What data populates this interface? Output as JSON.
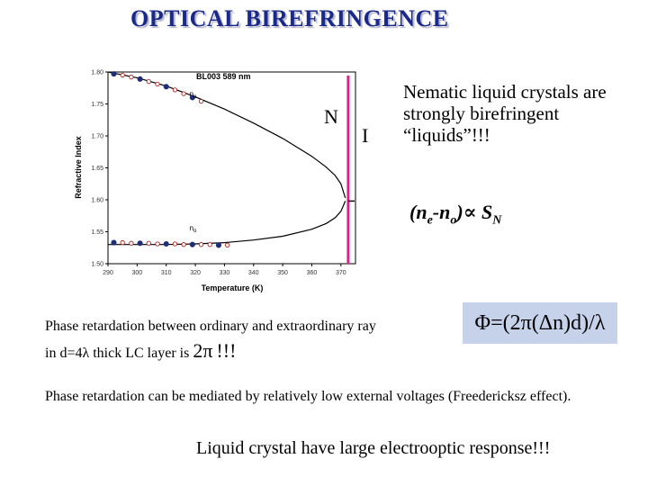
{
  "slide": {
    "title": "OPTICAL BIREFRINGENCE",
    "label_n": "N",
    "label_i": "I",
    "nematic_text": "Nematic liquid crystals are strongly birefringent “liquids”!!!",
    "formula": {
      "n_e": "n",
      "e_sub": "e",
      "minus": "-n",
      "o_sub": "o",
      "prop": "∝ S",
      "n_sub": "N"
    },
    "phase_line1": "Phase retardation between ordinary and extraordinary ray",
    "phase_line2_pre": "in d=4λ thick LC layer is",
    "phase_line2_big": "2π",
    "phase_line2_post": "!!!",
    "phi_formula": "Φ=(2π(Δn)d)/λ",
    "freedericksz": "Phase retardation can be mediated by relatively low external voltages (Freedericksz effect).",
    "response": "Liquid crystal have large electrooptic response!!!"
  },
  "colors": {
    "title": "#1a2a8a",
    "phi_box": "#c6d2ea",
    "transition_line": "#e0208c",
    "marker": "#1f2d7a"
  },
  "chart_data": {
    "type": "scatter",
    "title": "BL003 589 nm",
    "xlabel": "Temperature (K)",
    "ylabel": "Refractive Index",
    "xlim": [
      290,
      375
    ],
    "ylim": [
      1.5,
      1.8
    ],
    "xticks": [
      290,
      300,
      310,
      320,
      330,
      340,
      350,
      360,
      370
    ],
    "yticks": [
      1.5,
      1.55,
      1.6,
      1.65,
      1.7,
      1.75,
      1.8
    ],
    "grid": false,
    "series": [
      {
        "name": "ne",
        "label": "ne",
        "label_x": 318,
        "label_y": 1.762,
        "x": [
          292,
          295,
          298,
          301,
          304,
          307,
          310,
          313,
          316,
          319,
          322
        ],
        "y": [
          1.797,
          1.795,
          1.792,
          1.789,
          1.785,
          1.781,
          1.777,
          1.772,
          1.766,
          1.76,
          1.754
        ]
      },
      {
        "name": "no",
        "label": "no",
        "label_x": 318,
        "label_y": 1.552,
        "x": [
          292,
          295,
          298,
          301,
          304,
          307,
          310,
          313,
          316,
          319,
          322,
          325,
          328,
          331
        ],
        "y": [
          1.533,
          1.533,
          1.532,
          1.532,
          1.532,
          1.531,
          1.531,
          1.531,
          1.53,
          1.53,
          1.53,
          1.53,
          1.529,
          1.529
        ]
      }
    ],
    "fit_curves": [
      {
        "x": [
          290,
          300,
          310,
          320,
          330,
          340,
          350,
          360,
          365,
          368,
          370,
          371.5
        ],
        "y": [
          1.8,
          1.791,
          1.778,
          1.761,
          1.742,
          1.72,
          1.696,
          1.668,
          1.651,
          1.638,
          1.625,
          1.603
        ]
      },
      {
        "x": [
          290,
          300,
          310,
          320,
          330,
          340,
          350,
          360,
          365,
          368,
          370,
          371.5
        ],
        "y": [
          1.53,
          1.53,
          1.53,
          1.531,
          1.533,
          1.537,
          1.543,
          1.554,
          1.563,
          1.572,
          1.582,
          1.598
        ]
      }
    ],
    "transition_x": 372.5,
    "isotropic_tick_y": 1.598
  }
}
